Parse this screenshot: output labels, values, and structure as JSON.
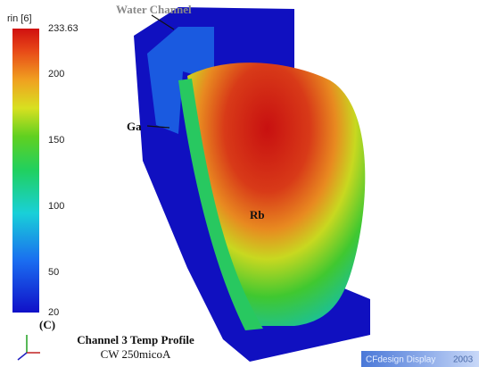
{
  "legend": {
    "title": "rin [6]",
    "ticks": [
      "233.63",
      "200",
      "150",
      "100",
      "50",
      "20"
    ]
  },
  "labels": {
    "water_channel": "Water Channel",
    "ga": "Ga",
    "rb": "Rb"
  },
  "footer": {
    "tag": "(C)",
    "title": "Channel 3 Temp Profile",
    "subtitle": "CW 250micoA"
  },
  "watermark": {
    "product": "CFdesign Display",
    "year": "2003"
  }
}
